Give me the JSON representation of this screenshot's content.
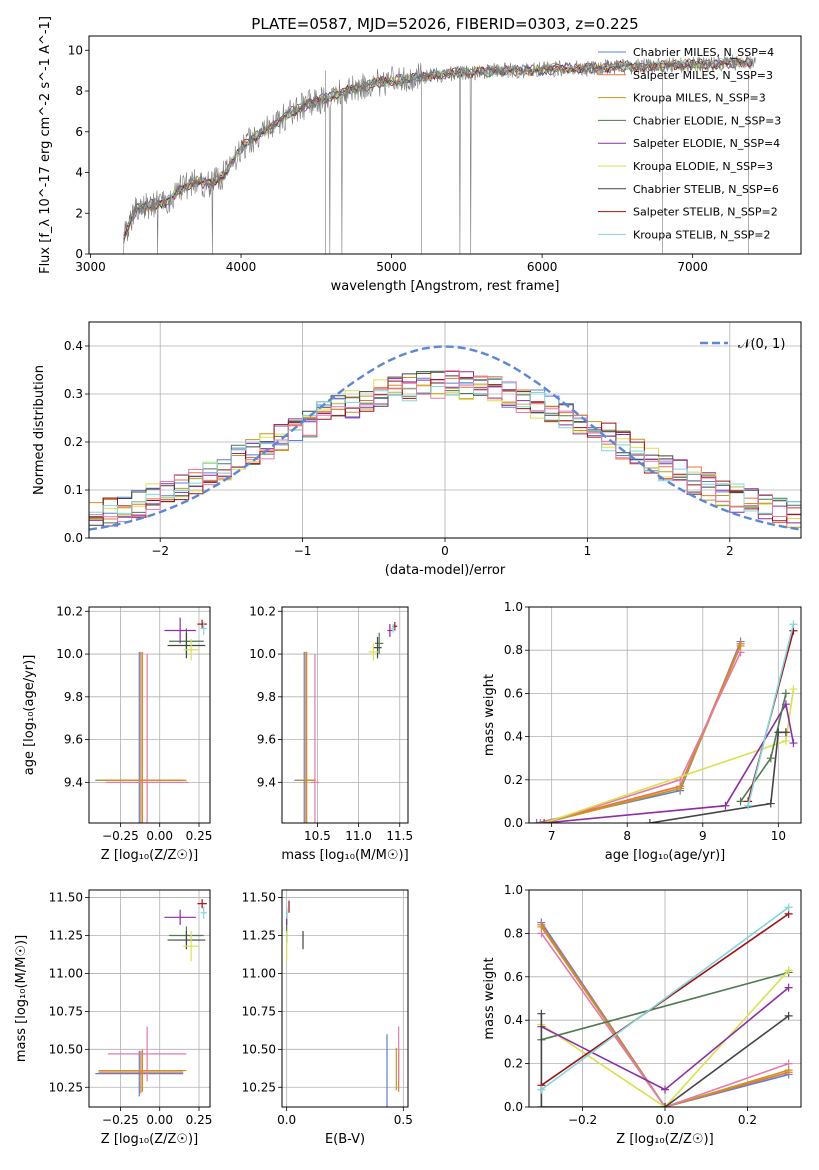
{
  "title": "PLATE=0587, MJD=52026, FIBERID=0303, z=0.225",
  "colors": {
    "chabrier_miles": "#5b7fd6",
    "salpeter_miles": "#e8743b",
    "kroupa_miles": "#c8961e",
    "chabrier_elodie": "#4e7a4e",
    "salpeter_elodie": "#8e2ca6",
    "kroupa_elodie": "#d8e24a",
    "chabrier_stelib": "#444444",
    "salpeter_stelib": "#a50f15",
    "kroupa_stelib": "#7fd8dc",
    "hist_pink": "#e678b0",
    "gaussian": "#5b88d6"
  },
  "chart_data": [
    {
      "id": "spectrum",
      "type": "line",
      "xlabel": "wavelength [Angstrom, rest frame]",
      "ylabel": "Flux [f_λ 10^-17 erg cm^-2 s^-1 A^-1]",
      "xlim": [
        2990,
        7720
      ],
      "ylim": [
        0,
        10.7
      ],
      "xticks": [
        "3000",
        "4000",
        "5000",
        "6000",
        "7000"
      ],
      "yticks": [
        "0",
        "2",
        "4",
        "6",
        "8",
        "10"
      ],
      "legend_position": "right",
      "legend": [
        {
          "label": "Chabrier MILES, N_SSP=4",
          "color": "#5b7fd6"
        },
        {
          "label": "Salpeter MILES, N_SSP=3",
          "color": "#e8743b"
        },
        {
          "label": "Kroupa MILES, N_SSP=3",
          "color": "#c8961e"
        },
        {
          "label": "Chabrier ELODIE, N_SSP=3",
          "color": "#4e7a4e"
        },
        {
          "label": "Salpeter ELODIE, N_SSP=4",
          "color": "#8e2ca6"
        },
        {
          "label": "Kroupa ELODIE, N_SSP=3",
          "color": "#d8e24a"
        },
        {
          "label": "Chabrier STELIB, N_SSP=6",
          "color": "#444444"
        },
        {
          "label": "Salpeter STELIB, N_SSP=2",
          "color": "#a50f15"
        },
        {
          "label": "Kroupa STELIB, N_SSP=2",
          "color": "#7fd8dc"
        }
      ],
      "envelope": {
        "x": [
          3220,
          3300,
          3400,
          3500,
          3600,
          3700,
          3800,
          3900,
          4000,
          4100,
          4200,
          4300,
          4400,
          4500,
          4700,
          4900,
          5100,
          5300,
          5500,
          5700,
          5900,
          6100,
          6300,
          6500,
          6700,
          6900,
          7100,
          7300,
          7400
        ],
        "y": [
          0.8,
          2.2,
          2.4,
          2.5,
          3.2,
          3.6,
          3.4,
          4.0,
          5.2,
          5.8,
          6.2,
          6.8,
          7.2,
          7.5,
          8.0,
          8.4,
          8.6,
          8.8,
          8.9,
          9.0,
          9.0,
          9.1,
          9.1,
          9.2,
          9.2,
          9.3,
          9.3,
          9.4,
          9.4
        ]
      }
    },
    {
      "id": "residuals",
      "type": "histogram",
      "xlabel": "(data-model)/error",
      "ylabel": "Normed distribution",
      "xlim": [
        -2.5,
        2.5
      ],
      "ylim": [
        0,
        0.45
      ],
      "xticks": [
        "−2",
        "−1",
        "0",
        "1",
        "2"
      ],
      "yticks": [
        "0.0",
        "0.1",
        "0.2",
        "0.3",
        "0.4"
      ],
      "grid": true,
      "legend": "𝒩(0, 1)",
      "legend_position": "top-right",
      "bin_width": 0.1
    },
    {
      "id": "age_vs_Z",
      "type": "errorbar",
      "xlabel": "Z [log₁₀(Z/Z☉)]",
      "ylabel": "age  [log₁₀(age/yr)]",
      "xlim": [
        -0.45,
        0.32
      ],
      "ylim": [
        9.21,
        10.22
      ],
      "xticks": [
        "−0.25",
        "0.00",
        "0.25"
      ],
      "yticks": [
        "9.4",
        "9.6",
        "9.8",
        "10.0",
        "10.2"
      ],
      "grid": true,
      "points": [
        {
          "c": "#5b7fd6",
          "x": -0.13,
          "xerr": 0.28,
          "y": 9.41,
          "yerr": 0.6
        },
        {
          "c": "#e8743b",
          "x": -0.12,
          "xerr": 0.27,
          "y": 9.41,
          "yerr": 0.6
        },
        {
          "c": "#c8961e",
          "x": -0.11,
          "xerr": 0.28,
          "y": 9.41,
          "yerr": 0.6
        },
        {
          "c": "#e678b0",
          "x": -0.08,
          "xerr": 0.26,
          "y": 9.4,
          "yerr": 0.6
        },
        {
          "c": "#4e7a4e",
          "x": 0.17,
          "xerr": 0.11,
          "y": 10.06,
          "yerr": 0.06
        },
        {
          "c": "#444444",
          "x": 0.17,
          "xerr": 0.12,
          "y": 10.04,
          "yerr": 0.06
        },
        {
          "c": "#8e2ca6",
          "x": 0.13,
          "xerr": 0.1,
          "y": 10.11,
          "yerr": 0.06
        },
        {
          "c": "#d8e24a",
          "x": 0.2,
          "xerr": 0.05,
          "y": 10.02,
          "yerr": 0.05
        },
        {
          "c": "#a50f15",
          "x": 0.27,
          "xerr": 0.03,
          "y": 10.14,
          "yerr": 0.02
        },
        {
          "c": "#7fd8dc",
          "x": 0.28,
          "xerr": 0.02,
          "y": 10.12,
          "yerr": 0.03
        }
      ]
    },
    {
      "id": "age_vs_mass",
      "type": "errorbar",
      "xlabel": "mass [log₁₀(M/M☉)]",
      "ylabel": "",
      "xlim": [
        10.07,
        11.6
      ],
      "ylim": [
        9.21,
        10.22
      ],
      "xticks": [
        "10.5",
        "11.0",
        "11.5"
      ],
      "yticks": [
        "9.4",
        "9.6",
        "9.8",
        "10.0",
        "10.2"
      ],
      "grid": true,
      "points": [
        {
          "c": "#5b7fd6",
          "x": 10.34,
          "xerr": 0.12,
          "y": 9.41,
          "yerr": 0.6
        },
        {
          "c": "#e8743b",
          "x": 10.36,
          "xerr": 0.11,
          "y": 9.41,
          "yerr": 0.6
        },
        {
          "c": "#c8961e",
          "x": 10.37,
          "xerr": 0.11,
          "y": 9.41,
          "yerr": 0.6
        },
        {
          "c": "#e678b0",
          "x": 10.47,
          "xerr": 0.05,
          "y": 9.4,
          "yerr": 0.6
        },
        {
          "c": "#4e7a4e",
          "x": 11.25,
          "xerr": 0.05,
          "y": 10.05,
          "yerr": 0.05
        },
        {
          "c": "#444444",
          "x": 11.23,
          "xerr": 0.05,
          "y": 10.03,
          "yerr": 0.05
        },
        {
          "c": "#d8e24a",
          "x": 11.18,
          "xerr": 0.06,
          "y": 10.01,
          "yerr": 0.04
        },
        {
          "c": "#8e2ca6",
          "x": 11.38,
          "xerr": 0.03,
          "y": 10.11,
          "yerr": 0.03
        },
        {
          "c": "#a50f15",
          "x": 11.44,
          "xerr": 0.03,
          "y": 10.13,
          "yerr": 0.02
        },
        {
          "c": "#7fd8dc",
          "x": 11.42,
          "xerr": 0.02,
          "y": 10.12,
          "yerr": 0.02
        }
      ]
    },
    {
      "id": "massweight_vs_age",
      "type": "line",
      "xlabel": "age  [log₁₀(age/yr)]",
      "ylabel": "mass weight",
      "xlim": [
        6.7,
        10.3
      ],
      "ylim": [
        0,
        1.0
      ],
      "xticks": [
        "7",
        "8",
        "9",
        "10"
      ],
      "yticks": [
        "0.0",
        "0.2",
        "0.4",
        "0.6",
        "0.8",
        "1.0"
      ],
      "grid": true,
      "series": [
        {
          "c": "#5b7fd6",
          "x": [
            6.8,
            8.7,
            9.5
          ],
          "y": [
            0.0,
            0.15,
            0.84
          ]
        },
        {
          "c": "#e8743b",
          "x": [
            6.85,
            8.7,
            9.5
          ],
          "y": [
            0.0,
            0.17,
            0.83
          ]
        },
        {
          "c": "#c8961e",
          "x": [
            6.9,
            8.7,
            9.5
          ],
          "y": [
            0.0,
            0.16,
            0.82
          ]
        },
        {
          "c": "#e678b0",
          "x": [
            6.9,
            8.7,
            9.5
          ],
          "y": [
            0.0,
            0.2,
            0.79
          ]
        },
        {
          "c": "#d8e24a",
          "x": [
            6.9,
            10.1,
            10.2
          ],
          "y": [
            0.0,
            0.38,
            0.62
          ]
        },
        {
          "c": "#8e2ca6",
          "x": [
            6.9,
            9.3,
            10.1,
            10.2
          ],
          "y": [
            0.0,
            0.08,
            0.55,
            0.37
          ]
        },
        {
          "c": "#4e7a4e",
          "x": [
            9.5,
            9.9,
            10.1
          ],
          "y": [
            0.1,
            0.3,
            0.6
          ]
        },
        {
          "c": "#444444",
          "x": [
            8.3,
            9.9,
            10.0,
            10.1
          ],
          "y": [
            0.0,
            0.09,
            0.42,
            0.42
          ]
        },
        {
          "c": "#a50f15",
          "x": [
            9.6,
            10.2
          ],
          "y": [
            0.1,
            0.89
          ]
        },
        {
          "c": "#7fd8dc",
          "x": [
            9.6,
            10.2
          ],
          "y": [
            0.08,
            0.92
          ]
        }
      ]
    },
    {
      "id": "mass_vs_Z",
      "type": "errorbar",
      "xlabel": "Z [log₁₀(Z/Z☉)]",
      "ylabel": "mass [log₁₀(M/M☉)]",
      "xlim": [
        -0.45,
        0.32
      ],
      "ylim": [
        10.12,
        11.55
      ],
      "xticks": [
        "−0.25",
        "0.00",
        "0.25"
      ],
      "yticks": [
        "10.25",
        "10.50",
        "10.75",
        "11.00",
        "11.25",
        "11.50"
      ],
      "grid": true,
      "points": [
        {
          "c": "#5b7fd6",
          "x": -0.13,
          "xerr": 0.28,
          "y": 10.34,
          "yerr": 0.15
        },
        {
          "c": "#e8743b",
          "x": -0.12,
          "xerr": 0.27,
          "y": 10.35,
          "yerr": 0.14
        },
        {
          "c": "#c8961e",
          "x": -0.11,
          "xerr": 0.28,
          "y": 10.36,
          "yerr": 0.14
        },
        {
          "c": "#e678b0",
          "x": -0.08,
          "xerr": 0.25,
          "y": 10.47,
          "yerr": 0.18
        },
        {
          "c": "#4e7a4e",
          "x": 0.17,
          "xerr": 0.11,
          "y": 11.25,
          "yerr": 0.06
        },
        {
          "c": "#444444",
          "x": 0.17,
          "xerr": 0.12,
          "y": 11.22,
          "yerr": 0.06
        },
        {
          "c": "#8e2ca6",
          "x": 0.13,
          "xerr": 0.1,
          "y": 11.37,
          "yerr": 0.05
        },
        {
          "c": "#d8e24a",
          "x": 0.2,
          "xerr": 0.05,
          "y": 11.18,
          "yerr": 0.1
        },
        {
          "c": "#a50f15",
          "x": 0.27,
          "xerr": 0.03,
          "y": 11.46,
          "yerr": 0.03
        },
        {
          "c": "#7fd8dc",
          "x": 0.28,
          "xerr": 0.02,
          "y": 11.4,
          "yerr": 0.04
        }
      ]
    },
    {
      "id": "mass_vs_ebv",
      "type": "errorbar",
      "xlabel": "E(B-V)",
      "ylabel": "",
      "xlim": [
        -0.02,
        0.52
      ],
      "ylim": [
        10.12,
        11.55
      ],
      "xticks": [
        "0.0",
        "0.5"
      ],
      "yticks": [
        "10.25",
        "10.50",
        "10.75",
        "11.00",
        "11.25",
        "11.50"
      ],
      "grid": true,
      "points": [
        {
          "c": "#5b7fd6",
          "x": 0.43,
          "xerr": 0,
          "y": 10.35,
          "yerr": 0.25
        },
        {
          "c": "#e8743b",
          "x": 0.48,
          "xerr": 0,
          "y": 10.36,
          "yerr": 0.14
        },
        {
          "c": "#c8961e",
          "x": 0.47,
          "xerr": 0,
          "y": 10.37,
          "yerr": 0.14
        },
        {
          "c": "#e678b0",
          "x": 0.48,
          "xerr": 0,
          "y": 10.47,
          "yerr": 0.18
        },
        {
          "c": "#4e7a4e",
          "x": 0.0,
          "xerr": 0,
          "y": 11.3,
          "yerr": 0.1
        },
        {
          "c": "#444444",
          "x": 0.07,
          "xerr": 0,
          "y": 11.22,
          "yerr": 0.06
        },
        {
          "c": "#8e2ca6",
          "x": 0.0,
          "xerr": 0,
          "y": 11.37,
          "yerr": 0.05
        },
        {
          "c": "#d8e24a",
          "x": 0.0,
          "xerr": 0,
          "y": 11.18,
          "yerr": 0.1
        },
        {
          "c": "#a50f15",
          "x": 0.01,
          "xerr": 0,
          "y": 11.44,
          "yerr": 0.04
        },
        {
          "c": "#7fd8dc",
          "x": 0.0,
          "xerr": 0,
          "y": 11.4,
          "yerr": 0.04
        }
      ]
    },
    {
      "id": "massweight_vs_Z",
      "type": "line",
      "xlabel": "Z [log₁₀(Z/Z☉)]",
      "ylabel": "mass weight",
      "xlim": [
        -0.33,
        0.33
      ],
      "ylim": [
        0,
        1.0
      ],
      "xticks": [
        "−0.2",
        "0.0",
        "0.2"
      ],
      "yticks": [
        "0.0",
        "0.2",
        "0.4",
        "0.6",
        "0.8",
        "1.0"
      ],
      "grid": true,
      "series": [
        {
          "c": "#5b7fd6",
          "x": [
            -0.3,
            0.0,
            0.3
          ],
          "y": [
            0.85,
            0.0,
            0.15
          ]
        },
        {
          "c": "#e8743b",
          "x": [
            -0.3,
            0.0,
            0.3
          ],
          "y": [
            0.84,
            0.0,
            0.16
          ]
        },
        {
          "c": "#c8961e",
          "x": [
            -0.3,
            0.0,
            0.3
          ],
          "y": [
            0.83,
            0.0,
            0.17
          ]
        },
        {
          "c": "#e678b0",
          "x": [
            -0.3,
            0.0,
            0.3
          ],
          "y": [
            0.8,
            0.0,
            0.2
          ]
        },
        {
          "c": "#4e7a4e",
          "x": [
            -0.3,
            0.3
          ],
          "y": [
            0.31,
            0.62
          ]
        },
        {
          "c": "#d8e24a",
          "x": [
            -0.3,
            0.0,
            0.3
          ],
          "y": [
            0.38,
            0.0,
            0.63
          ]
        },
        {
          "c": "#8e2ca6",
          "x": [
            -0.3,
            0.0,
            0.3
          ],
          "y": [
            0.37,
            0.08,
            0.55
          ]
        },
        {
          "c": "#444444",
          "x": [
            -0.3,
            -0.3,
            0.0,
            0.3
          ],
          "y": [
            0.43,
            0.0,
            0.0,
            0.42
          ]
        },
        {
          "c": "#a50f15",
          "x": [
            -0.3,
            0.3
          ],
          "y": [
            0.1,
            0.89
          ]
        },
        {
          "c": "#7fd8dc",
          "x": [
            -0.3,
            0.3
          ],
          "y": [
            0.08,
            0.92
          ]
        }
      ]
    }
  ]
}
